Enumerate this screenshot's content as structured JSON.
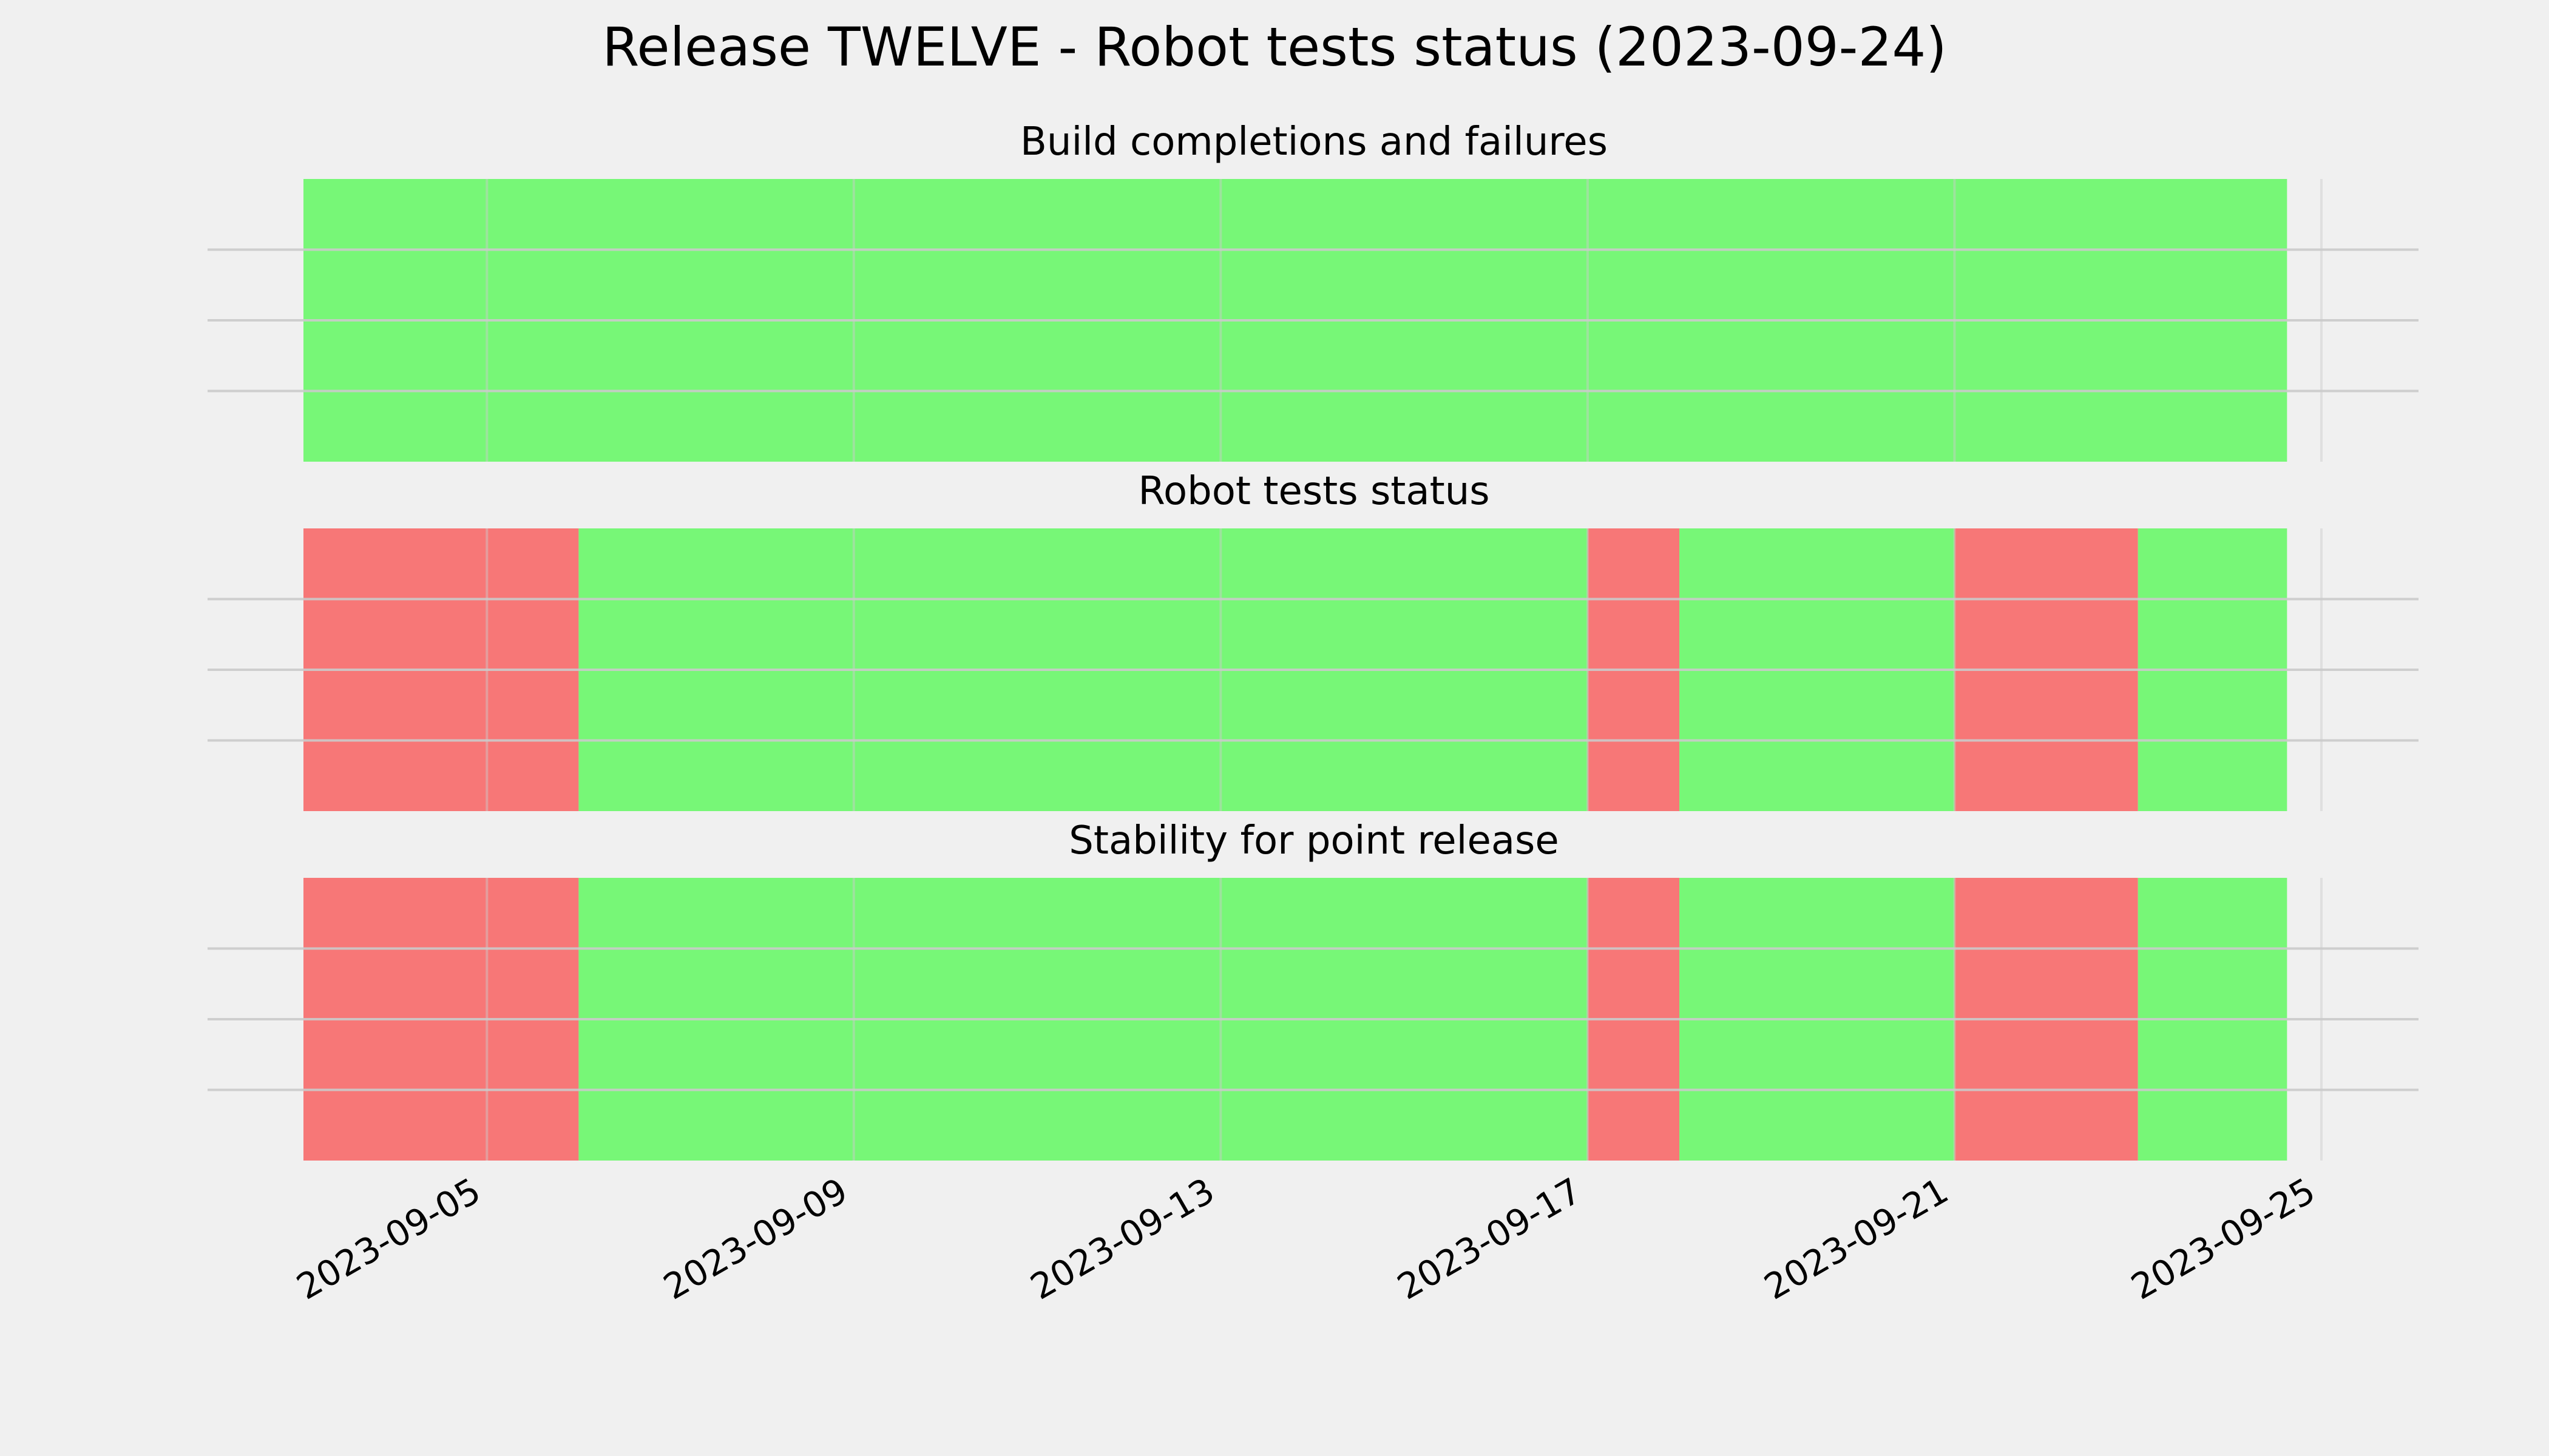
{
  "chart_data": {
    "type": "bar",
    "title": "Release TWELVE - Robot tests status (2023-09-24)",
    "x_ticks": [
      "2023-09-05",
      "2023-09-09",
      "2023-09-13",
      "2023-09-17",
      "2023-09-21",
      "2023-09-25"
    ],
    "xlim": [
      "2023-09-03",
      "2023-09-25"
    ],
    "grid": true,
    "colors": {
      "pass": "#77f777",
      "fail": "#f77777",
      "background": "#f0f0f0",
      "grid": "#cbcbcb"
    },
    "panels": [
      {
        "title": "Build completions and failures",
        "segments": [
          {
            "start": "2023-09-03",
            "end": "2023-09-24T15:00",
            "status": "pass"
          }
        ]
      },
      {
        "title": "Robot tests status",
        "segments": [
          {
            "start": "2023-09-03",
            "end": "2023-09-06",
            "status": "fail"
          },
          {
            "start": "2023-09-06",
            "end": "2023-09-17",
            "status": "pass"
          },
          {
            "start": "2023-09-17",
            "end": "2023-09-18",
            "status": "fail"
          },
          {
            "start": "2023-09-18",
            "end": "2023-09-21",
            "status": "pass"
          },
          {
            "start": "2023-09-21",
            "end": "2023-09-23",
            "status": "fail"
          },
          {
            "start": "2023-09-23",
            "end": "2023-09-24T15:00",
            "status": "pass"
          }
        ]
      },
      {
        "title": "Stability for point release",
        "segments": [
          {
            "start": "2023-09-03",
            "end": "2023-09-06",
            "status": "fail"
          },
          {
            "start": "2023-09-06",
            "end": "2023-09-17",
            "status": "pass"
          },
          {
            "start": "2023-09-17",
            "end": "2023-09-18",
            "status": "fail"
          },
          {
            "start": "2023-09-18",
            "end": "2023-09-21",
            "status": "pass"
          },
          {
            "start": "2023-09-21",
            "end": "2023-09-23",
            "status": "fail"
          },
          {
            "start": "2023-09-23",
            "end": "2023-09-24T15:00",
            "status": "pass"
          }
        ]
      }
    ]
  }
}
